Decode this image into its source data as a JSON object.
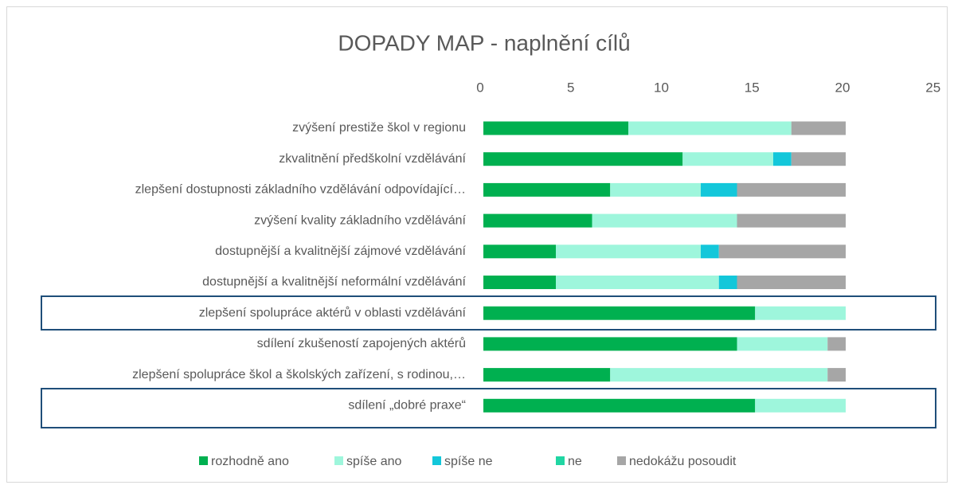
{
  "chart_data": {
    "type": "stacked_barh",
    "title": "DOPADY MAP - naplnění cílů",
    "categories": [
      "zvýšení prestiže škol v regionu",
      "zkvalitnění předškolní vzdělávání",
      "zlepšení dostupnosti základního vzdělávání odpovídající…",
      "zvýšení kvality základního vzdělávání",
      "dostupnější a kvalitnější zájmové vzdělávání",
      "dostupnější a kvalitnější neformální vzdělávání",
      "zlepšení spolupráce aktérů v oblasti vzdělávání",
      "sdílení zkušeností zapojených aktérů",
      "zlepšení spolupráce škol a školských zařízení, s rodinou,…",
      "sdílení „dobré praxe“"
    ],
    "series": [
      {
        "name": "rozhodně ano",
        "color": "#00b050",
        "values": [
          8,
          11,
          7,
          6,
          4,
          4,
          15,
          14,
          7,
          15
        ]
      },
      {
        "name": "spíše ano",
        "color": "#9ef6dc",
        "values": [
          9,
          5,
          5,
          8,
          8,
          9,
          5,
          5,
          12,
          5
        ]
      },
      {
        "name": "spíše ne",
        "color": "#13c7da",
        "values": [
          0,
          1,
          2,
          0,
          1,
          1,
          0,
          0,
          0,
          0
        ]
      },
      {
        "name": "ne",
        "color": "#20d6a3",
        "values": [
          0,
          0,
          0,
          0,
          0,
          0,
          0,
          0,
          0,
          0
        ]
      },
      {
        "name": "nedokážu posoudit",
        "color": "#a6a6a6",
        "values": [
          3,
          3,
          6,
          6,
          7,
          6,
          0,
          1,
          1,
          0
        ]
      }
    ],
    "xlim": [
      0,
      25
    ],
    "xticks": [
      0,
      5,
      10,
      15,
      20,
      25
    ],
    "grid": false,
    "legend": "bottom"
  }
}
